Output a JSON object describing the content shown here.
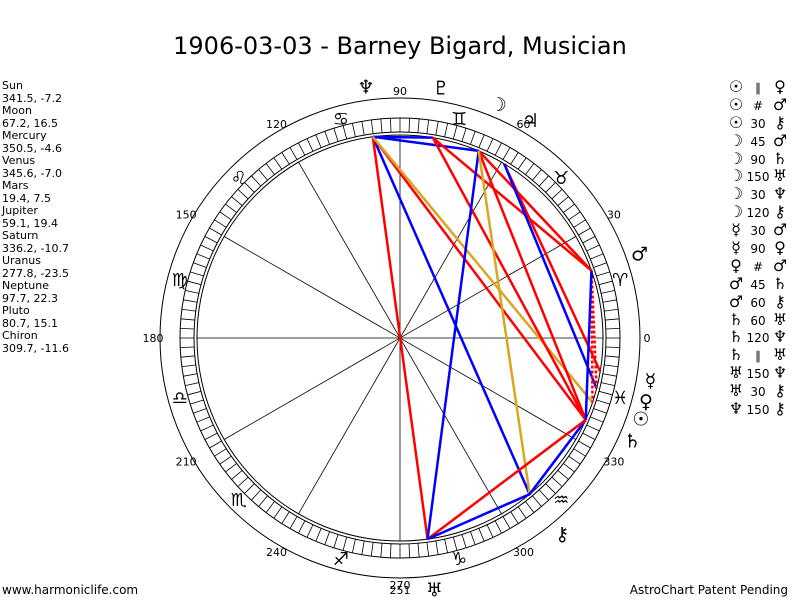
{
  "title": "1906-03-03 - Barney Bigard, Musician",
  "planet_readout": [
    {
      "name": "Sun",
      "value": "341.5, -7.2"
    },
    {
      "name": "Moon",
      "value": "67.2, 16.5"
    },
    {
      "name": "Mercury",
      "value": "350.5, -4.6"
    },
    {
      "name": "Venus",
      "value": "345.6, -7.0"
    },
    {
      "name": "Mars",
      "value": "19.4, 7.5"
    },
    {
      "name": "Jupiter",
      "value": "59.1, 19.4"
    },
    {
      "name": "Saturn",
      "value": "336.2, -10.7"
    },
    {
      "name": "Uranus",
      "value": "277.8, -23.5"
    },
    {
      "name": "Neptune",
      "value": "97.7, 22.3"
    },
    {
      "name": "Pluto",
      "value": "80.7, 15.1"
    },
    {
      "name": "Chiron",
      "value": "309.7, -11.6"
    }
  ],
  "aspect_list": [
    {
      "p1": "☉",
      "aspect": "∥",
      "p2": "♀"
    },
    {
      "p1": "☉",
      "aspect": "#",
      "p2": "♂"
    },
    {
      "p1": "☉",
      "aspect": "30",
      "p2": "⚷"
    },
    {
      "p1": "☽",
      "aspect": "45",
      "p2": "♂"
    },
    {
      "p1": "☽",
      "aspect": "90",
      "p2": "♄"
    },
    {
      "p1": "☽",
      "aspect": "150",
      "p2": "♅"
    },
    {
      "p1": "☽",
      "aspect": "30",
      "p2": "♆"
    },
    {
      "p1": "☽",
      "aspect": "120",
      "p2": "⚷"
    },
    {
      "p1": "☿",
      "aspect": "30",
      "p2": "♂"
    },
    {
      "p1": "☿",
      "aspect": "90",
      "p2": "♀"
    },
    {
      "p1": "♀",
      "aspect": "#",
      "p2": "♂"
    },
    {
      "p1": "♂",
      "aspect": "45",
      "p2": "♄"
    },
    {
      "p1": "♂",
      "aspect": "60",
      "p2": "⚷"
    },
    {
      "p1": "♄",
      "aspect": "60",
      "p2": "♅"
    },
    {
      "p1": "♄",
      "aspect": "120",
      "p2": "♆"
    },
    {
      "p1": "♄",
      "aspect": "∥",
      "p2": "♅"
    },
    {
      "p1": "♅",
      "aspect": "150",
      "p2": "♆"
    },
    {
      "p1": "♅",
      "aspect": "30",
      "p2": "⚷"
    },
    {
      "p1": "♆",
      "aspect": "150",
      "p2": "⚷"
    }
  ],
  "wheel": {
    "degree_labels": [
      "0",
      "30",
      "60",
      "90",
      "120",
      "150",
      "180",
      "210",
      "240",
      "270",
      "300",
      "330"
    ],
    "extra_label": "251",
    "signs": [
      "♈",
      "♉",
      "♊",
      "♋",
      "♌",
      "♍",
      "♎",
      "♏",
      "♐",
      "♑",
      "♒",
      "♓"
    ],
    "planets": [
      {
        "name": "Sun",
        "glyph": "☉",
        "lon": 341.5
      },
      {
        "name": "Moon",
        "glyph": "☽",
        "lon": 67.2
      },
      {
        "name": "Mercury",
        "glyph": "☿",
        "lon": 350.5
      },
      {
        "name": "Venus",
        "glyph": "♀",
        "lon": 345.6
      },
      {
        "name": "Mars",
        "glyph": "♂",
        "lon": 19.4
      },
      {
        "name": "Jupiter",
        "glyph": "♃",
        "lon": 59.1
      },
      {
        "name": "Saturn",
        "glyph": "♄",
        "lon": 336.2
      },
      {
        "name": "Uranus",
        "glyph": "♅",
        "lon": 277.8
      },
      {
        "name": "Neptune",
        "glyph": "♆",
        "lon": 97.7
      },
      {
        "name": "Pluto",
        "glyph": "♇",
        "lon": 80.7
      },
      {
        "name": "Chiron",
        "glyph": "⚷",
        "lon": 309.7
      }
    ],
    "aspect_lines": [
      {
        "from": "Neptune",
        "to": "Pluto",
        "color": "#0000ff"
      },
      {
        "from": "Neptune",
        "to": "Moon",
        "color": "#0000ff"
      },
      {
        "from": "Neptune",
        "to": "Chiron",
        "color": "#0000ff"
      },
      {
        "from": "Neptune",
        "to": "Saturn",
        "color": "#ff0000"
      },
      {
        "from": "Neptune",
        "to": "Uranus",
        "color": "#ff0000"
      },
      {
        "from": "Neptune",
        "to": "Sun",
        "color": "#daa520"
      },
      {
        "from": "Pluto",
        "to": "Mars",
        "color": "#ff0000"
      },
      {
        "from": "Pluto",
        "to": "Saturn",
        "color": "#ff0000"
      },
      {
        "from": "Moon",
        "to": "Mars",
        "color": "#ff0000"
      },
      {
        "from": "Moon",
        "to": "Saturn",
        "color": "#ff0000"
      },
      {
        "from": "Moon",
        "to": "Uranus",
        "color": "#0000ff"
      },
      {
        "from": "Moon",
        "to": "Chiron",
        "color": "#daa520"
      },
      {
        "from": "Jupiter",
        "to": "Mercury",
        "color": "#ff0000"
      },
      {
        "from": "Jupiter",
        "to": "Venus",
        "color": "#0000ff"
      },
      {
        "from": "Mars",
        "to": "Sun",
        "color": "#ff0000",
        "dashed": true
      },
      {
        "from": "Mars",
        "to": "Venus",
        "color": "#ff0000",
        "dashed": true
      },
      {
        "from": "Mars",
        "to": "Saturn",
        "color": "#0000ff"
      },
      {
        "from": "Saturn",
        "to": "Chiron",
        "color": "#0000ff"
      },
      {
        "from": "Saturn",
        "to": "Uranus",
        "color": "#ff0000"
      },
      {
        "from": "Uranus",
        "to": "Chiron",
        "color": "#0000ff"
      }
    ]
  },
  "footer_left": "www.harmoniclife.com",
  "footer_right": "AstroChart Patent Pending",
  "colors": {
    "trine": "#0000ff",
    "square": "#ff0000",
    "quincunx": "#daa520"
  }
}
